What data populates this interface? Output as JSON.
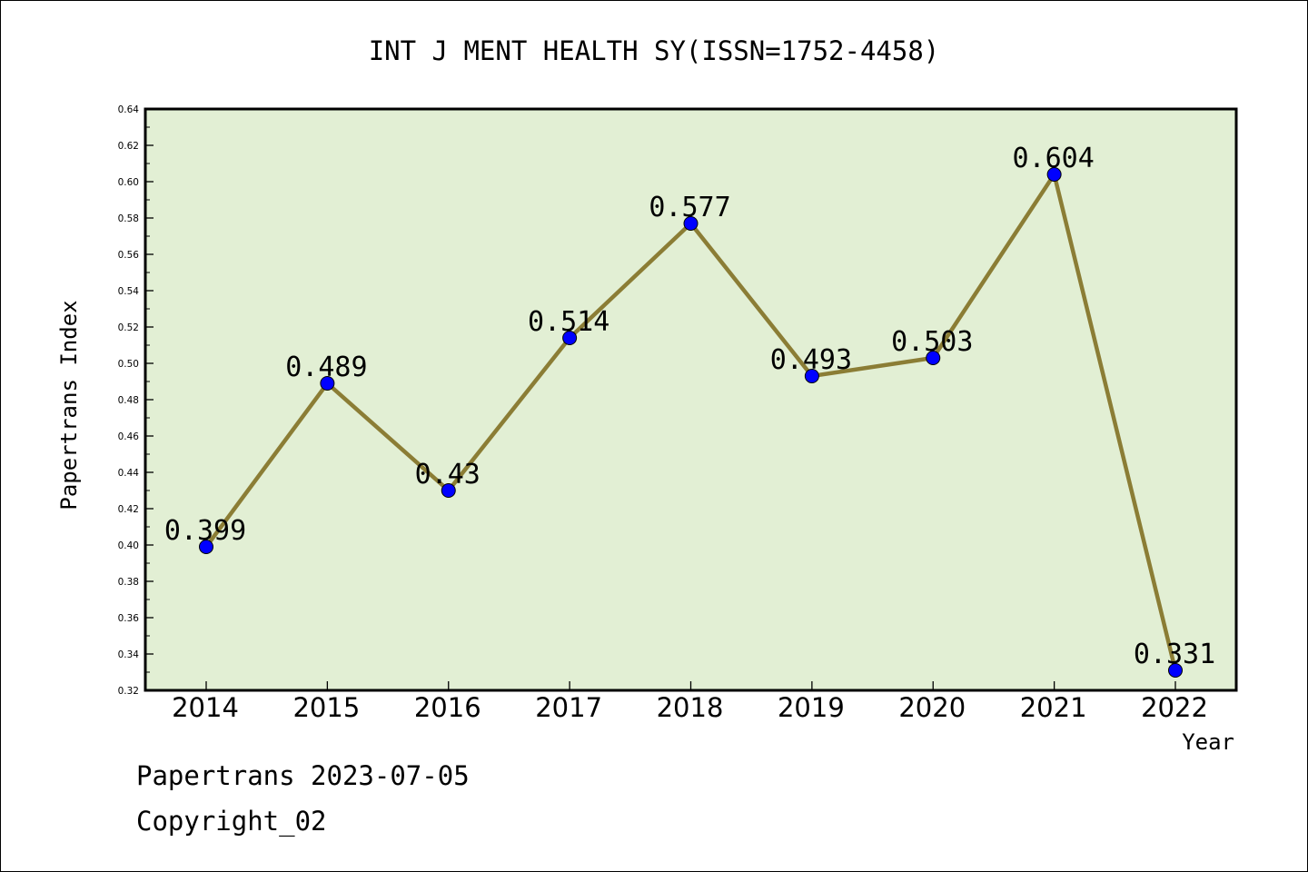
{
  "chart_data": {
    "type": "line",
    "title": "INT J MENT HEALTH SY(ISSN=1752-4458)",
    "xlabel": "Year",
    "ylabel": "Papertrans Index",
    "categories": [
      "2014",
      "2015",
      "2016",
      "2017",
      "2018",
      "2019",
      "2020",
      "2021",
      "2022"
    ],
    "values": [
      0.399,
      0.489,
      0.43,
      0.514,
      0.577,
      0.493,
      0.503,
      0.604,
      0.331
    ],
    "data_labels": [
      "0.399",
      "0.489",
      "0.43",
      "0.514",
      "0.577",
      "0.493",
      "0.503",
      "0.604",
      "0.331"
    ],
    "ylim": [
      0.32,
      0.64
    ],
    "y_ticks": [
      "0.32",
      "0.34",
      "0.36",
      "0.38",
      "0.40",
      "0.42",
      "0.44",
      "0.46",
      "0.48",
      "0.50",
      "0.52",
      "0.54",
      "0.56",
      "0.58",
      "0.60",
      "0.62",
      "0.64"
    ],
    "grid": false,
    "colors": {
      "plot_background": "#e2efd4",
      "line": "#8b7d35",
      "marker": "#0000ff"
    }
  },
  "footer": {
    "line1": "Papertrans 2023-07-05",
    "line2": "Copyright_02"
  }
}
